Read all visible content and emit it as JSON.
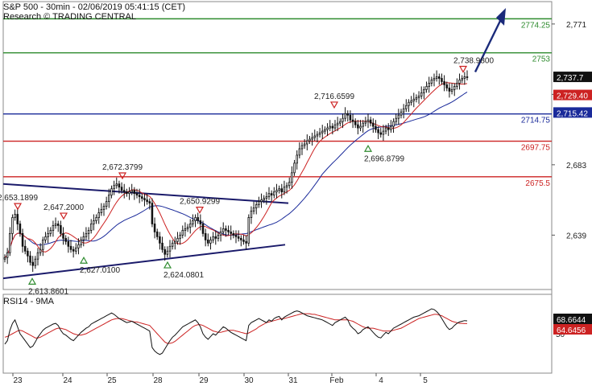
{
  "header": {
    "line1": "S&P 500 - 30min - 02/06/2019 05:41:15 (CET)",
    "line2": "Research © TRADING CENTRAL"
  },
  "chart_data": [
    {
      "type": "candlestick",
      "title": "S&P 500 - 30min - 02/06/2019 05:41:15 (CET)",
      "ylim": [
        2605,
        2785
      ],
      "y_ticks": [
        "2,771",
        "2,727",
        "2,683",
        "2,639"
      ],
      "y_tick_values": [
        2771,
        2727,
        2683,
        2639
      ],
      "x_ticks": [
        "23",
        "24",
        "25",
        "28",
        "29",
        "30",
        "31",
        "Feb",
        "4",
        "5"
      ],
      "levels": [
        {
          "name": "resistance-2",
          "label": "2774.25",
          "value": 2774.25,
          "color": "#2e8b2e"
        },
        {
          "name": "resistance-1",
          "label": "2753",
          "value": 2753,
          "color": "#2e8b2e"
        },
        {
          "name": "pivot",
          "label": "2714.75",
          "value": 2714.75,
          "color": "#1a2a9a"
        },
        {
          "name": "support-1",
          "label": "2697.75",
          "value": 2697.75,
          "color": "#cc2222"
        },
        {
          "name": "support-2",
          "label": "2675.5",
          "value": 2675.5,
          "color": "#cc2222"
        }
      ],
      "price_tags": [
        {
          "name": "last-price",
          "label": "2,737.7",
          "value": 2737.7,
          "bg": "#111111"
        },
        {
          "name": "ma-fast",
          "label": "2,729.40",
          "value": 2729.4,
          "bg": "#cc2222"
        },
        {
          "name": "ma-slow",
          "label": "2,715.42",
          "value": 2715.42,
          "bg": "#1a2a9a"
        }
      ],
      "annotations": [
        {
          "label": "2,653.1899",
          "value": 2653.1899,
          "kind": "high"
        },
        {
          "label": "2,647.2000",
          "value": 2647.2,
          "kind": "high"
        },
        {
          "label": "2,672.3799",
          "value": 2672.3799,
          "kind": "high"
        },
        {
          "label": "2,650.9299",
          "value": 2650.9299,
          "kind": "high"
        },
        {
          "label": "2,716.6599",
          "value": 2716.6599,
          "kind": "high"
        },
        {
          "label": "2,738.9800",
          "value": 2738.98,
          "kind": "high"
        },
        {
          "label": "2,627.0100",
          "value": 2627.01,
          "kind": "low"
        },
        {
          "label": "2,624.0801",
          "value": 2624.0801,
          "kind": "low"
        },
        {
          "label": "2,696.8799",
          "value": 2696.8799,
          "kind": "low"
        },
        {
          "label": "2,613.8601",
          "value": 2613.8601,
          "kind": "low"
        }
      ],
      "close": [
        2625,
        2628,
        2640,
        2650,
        2652,
        2646,
        2640,
        2632,
        2629,
        2626,
        2622,
        2620,
        2624,
        2628,
        2630,
        2636,
        2638,
        2640,
        2642,
        2645,
        2646,
        2645,
        2640,
        2637,
        2635,
        2632,
        2630,
        2629,
        2631,
        2633,
        2636,
        2638,
        2640,
        2642,
        2646,
        2648,
        2650,
        2653,
        2655,
        2657,
        2660,
        2664,
        2668,
        2670,
        2671,
        2669,
        2667,
        2666,
        2665,
        2666,
        2667,
        2665,
        2664,
        2663,
        2662,
        2661,
        2660,
        2659,
        2646,
        2641,
        2638,
        2634,
        2630,
        2627,
        2629,
        2632,
        2634,
        2635,
        2637,
        2639,
        2642,
        2643,
        2644,
        2646,
        2648,
        2650,
        2648,
        2646,
        2640,
        2636,
        2634,
        2636,
        2638,
        2637,
        2639,
        2641,
        2643,
        2642,
        2641,
        2640,
        2639,
        2638,
        2637,
        2636,
        2635,
        2634,
        2650,
        2654,
        2656,
        2658,
        2660,
        2661,
        2662,
        2663,
        2665,
        2664,
        2666,
        2667,
        2668,
        2666,
        2669,
        2670,
        2672,
        2678,
        2684,
        2689,
        2693,
        2695,
        2696,
        2698,
        2699,
        2700,
        2701,
        2702,
        2703,
        2704,
        2705,
        2706,
        2707,
        2706,
        2708,
        2709,
        2710,
        2712,
        2715,
        2714,
        2711,
        2710,
        2708,
        2706,
        2707,
        2709,
        2710,
        2711,
        2709,
        2707,
        2705,
        2703,
        2702,
        2704,
        2706,
        2705,
        2707,
        2710,
        2712,
        2714,
        2716,
        2718,
        2720,
        2722,
        2723,
        2724,
        2725,
        2726,
        2728,
        2730,
        2732,
        2734,
        2736,
        2737,
        2738,
        2737,
        2735,
        2733,
        2731,
        2729,
        2730,
        2732,
        2734,
        2736,
        2737,
        2738,
        2737.7
      ],
      "rsi_panel": {
        "title": "RSI14 - 9MA",
        "ylim": [
          0,
          100
        ],
        "y_ticks": [
          "50"
        ],
        "y_tick_values": [
          50
        ],
        "price_tags": [
          {
            "name": "rsi-value",
            "label": "68.6644",
            "value": 68.6644,
            "bg": "#111111"
          },
          {
            "name": "rsi-ma-value",
            "label": "64.6456",
            "value": 64.6456,
            "bg": "#cc2222"
          }
        ],
        "rsi": [
          35,
          40,
          55,
          65,
          70,
          60,
          50,
          45,
          40,
          35,
          30,
          32,
          38,
          45,
          50,
          55,
          58,
          60,
          62,
          64,
          65,
          62,
          55,
          50,
          48,
          45,
          42,
          40,
          44,
          48,
          52,
          55,
          58,
          60,
          64,
          66,
          68,
          70,
          72,
          74,
          76,
          78,
          80,
          78,
          75,
          72,
          70,
          68,
          66,
          67,
          68,
          66,
          64,
          62,
          60,
          58,
          56,
          54,
          30,
          25,
          22,
          20,
          22,
          28,
          34,
          40,
          45,
          48,
          52,
          56,
          60,
          62,
          64,
          66,
          68,
          70,
          66,
          60,
          50,
          45,
          42,
          46,
          50,
          48,
          52,
          56,
          60,
          58,
          55,
          52,
          50,
          48,
          46,
          44,
          42,
          40,
          62,
          66,
          68,
          70,
          72,
          70,
          68,
          66,
          70,
          68,
          72,
          74,
          75,
          70,
          74,
          76,
          78,
          80,
          82,
          83,
          82,
          80,
          78,
          76,
          75,
          74,
          73,
          72,
          71,
          70,
          68,
          66,
          64,
          62,
          66,
          68,
          70,
          72,
          74,
          70,
          62,
          58,
          55,
          50,
          52,
          56,
          58,
          60,
          56,
          52,
          48,
          45,
          44,
          48,
          52,
          50,
          54,
          58,
          60,
          62,
          64,
          66,
          68,
          70,
          72,
          74,
          75,
          76,
          78,
          80,
          82,
          84,
          86,
          85,
          82,
          78,
          72,
          66,
          60,
          56,
          58,
          62,
          65,
          67,
          68,
          69,
          68.66
        ],
        "rsi_ma": [
          45,
          46,
          48,
          50,
          52,
          54,
          55,
          54,
          52,
          50,
          48,
          46,
          44,
          44,
          45,
          47,
          49,
          51,
          53,
          55,
          57,
          58,
          58,
          57,
          56,
          54,
          52,
          50,
          49,
          48,
          48,
          49,
          50,
          52,
          54,
          56,
          58,
          60,
          62,
          64,
          66,
          68,
          70,
          71,
          72,
          72,
          72,
          71,
          70,
          69,
          68,
          67,
          67,
          66,
          65,
          64,
          63,
          62,
          58,
          54,
          50,
          46,
          42,
          38,
          36,
          36,
          37,
          39,
          42,
          45,
          48,
          51,
          54,
          57,
          60,
          62,
          63,
          63,
          62,
          60,
          58,
          56,
          54,
          53,
          52,
          52,
          53,
          54,
          55,
          55,
          55,
          54,
          53,
          52,
          51,
          50,
          51,
          53,
          55,
          57,
          60,
          62,
          64,
          66,
          67,
          68,
          69,
          70,
          71,
          72,
          72,
          73,
          74,
          75,
          76,
          77,
          78,
          79,
          79,
          79,
          79,
          78,
          78,
          77,
          76,
          75,
          74,
          73,
          72,
          71,
          70,
          70,
          70,
          70,
          70,
          70,
          69,
          68,
          66,
          64,
          62,
          60,
          59,
          58,
          58,
          58,
          57,
          56,
          55,
          54,
          54,
          54,
          54,
          55,
          56,
          57,
          58,
          60,
          62,
          64,
          66,
          68,
          70,
          72,
          73,
          74,
          75,
          76,
          77,
          78,
          78,
          77,
          76,
          74,
          72,
          70,
          68,
          67,
          66,
          65,
          65,
          64.6,
          64.65
        ]
      }
    }
  ]
}
